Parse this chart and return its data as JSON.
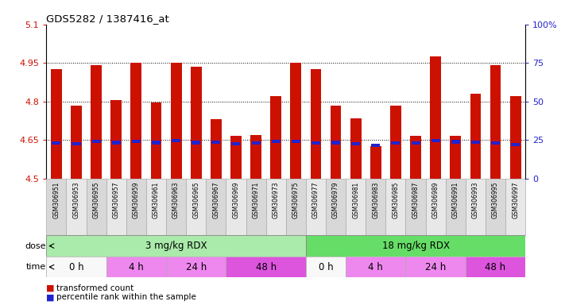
{
  "title": "GDS5282 / 1387416_at",
  "samples": [
    "GSM306951",
    "GSM306953",
    "GSM306955",
    "GSM306957",
    "GSM306959",
    "GSM306961",
    "GSM306963",
    "GSM306965",
    "GSM306967",
    "GSM306969",
    "GSM306971",
    "GSM306973",
    "GSM306975",
    "GSM306977",
    "GSM306979",
    "GSM306981",
    "GSM306983",
    "GSM306985",
    "GSM306987",
    "GSM306989",
    "GSM306991",
    "GSM306993",
    "GSM306995",
    "GSM306997"
  ],
  "bar_values": [
    4.925,
    4.785,
    4.94,
    4.805,
    4.95,
    4.795,
    4.95,
    4.935,
    4.73,
    4.665,
    4.67,
    4.82,
    4.95,
    4.925,
    4.785,
    4.735,
    4.625,
    4.785,
    4.665,
    4.975,
    4.665,
    4.83,
    4.94,
    4.82
  ],
  "blue_values": [
    4.638,
    4.635,
    4.645,
    4.64,
    4.645,
    4.64,
    4.648,
    4.64,
    4.642,
    4.635,
    4.638,
    4.645,
    4.645,
    4.638,
    4.64,
    4.635,
    4.63,
    4.638,
    4.638,
    4.648,
    4.643,
    4.642,
    4.638,
    4.632
  ],
  "bar_bottom": 4.5,
  "ylim_left": [
    4.5,
    5.1
  ],
  "ylim_right": [
    0,
    100
  ],
  "yticks_left": [
    4.5,
    4.65,
    4.8,
    4.95,
    5.1
  ],
  "ytick_labels_left": [
    "4.5",
    "4.65",
    "4.8",
    "4.95",
    "5.1"
  ],
  "yticks_right": [
    0,
    25,
    50,
    75,
    100
  ],
  "ytick_labels_right": [
    "0",
    "25",
    "50",
    "75",
    "100%"
  ],
  "grid_values": [
    4.65,
    4.8,
    4.95
  ],
  "dose_groups": [
    {
      "label": "3 mg/kg RDX",
      "start": 0,
      "end": 13,
      "color": "#aaeaaa"
    },
    {
      "label": "18 mg/kg RDX",
      "start": 13,
      "end": 24,
      "color": "#66dd66"
    }
  ],
  "time_groups": [
    {
      "label": "0 h",
      "start": 0,
      "end": 3,
      "color": "#f8f8f8"
    },
    {
      "label": "4 h",
      "start": 3,
      "end": 6,
      "color": "#ee88ee"
    },
    {
      "label": "24 h",
      "start": 6,
      "end": 9,
      "color": "#ee88ee"
    },
    {
      "label": "48 h",
      "start": 9,
      "end": 13,
      "color": "#dd55dd"
    },
    {
      "label": "0 h",
      "start": 13,
      "end": 15,
      "color": "#f8f8f8"
    },
    {
      "label": "4 h",
      "start": 15,
      "end": 18,
      "color": "#ee88ee"
    },
    {
      "label": "24 h",
      "start": 18,
      "end": 21,
      "color": "#ee88ee"
    },
    {
      "label": "48 h",
      "start": 21,
      "end": 24,
      "color": "#dd55dd"
    }
  ],
  "bar_color": "#cc1100",
  "blue_color": "#2222cc",
  "left_tick_color": "#cc1100",
  "right_tick_color": "#2222cc",
  "bg_color": "#ffffff",
  "bar_width": 0.55,
  "sample_bg_even": "#d8d8d8",
  "sample_bg_odd": "#e8e8e8",
  "legend_items": [
    {
      "label": "transformed count",
      "color": "#cc1100"
    },
    {
      "label": "percentile rank within the sample",
      "color": "#2222cc"
    }
  ]
}
